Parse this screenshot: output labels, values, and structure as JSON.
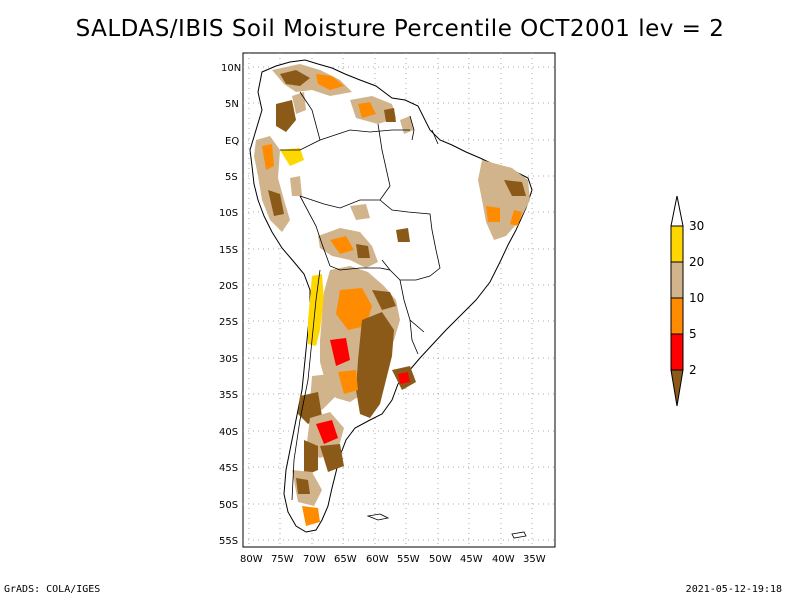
{
  "title": "SALDAS/IBIS Soil Moisture Percentile OCT2001 lev = 2",
  "footer": {
    "left": "GrADS: COLA/IGES",
    "right": "2021-05-12-19:18"
  },
  "axes": {
    "lat_ticks": [
      "10N",
      "5N",
      "EQ",
      "5S",
      "10S",
      "15S",
      "20S",
      "25S",
      "30S",
      "35S",
      "40S",
      "45S",
      "50S",
      "55S"
    ],
    "lon_ticks": [
      "80W",
      "75W",
      "70W",
      "65W",
      "60W",
      "55W",
      "50W",
      "45W",
      "40W",
      "35W"
    ]
  },
  "colorbar": {
    "labels": [
      "2",
      "5",
      "10",
      "20",
      "30"
    ],
    "colors": {
      "lt2": "#8b5a19",
      "2to5": "#ff0000",
      "5to10": "#ff8c00",
      "10to20": "#d2b48c",
      "20to30": "#ffd700",
      "gt30": "#ffffff"
    }
  }
}
